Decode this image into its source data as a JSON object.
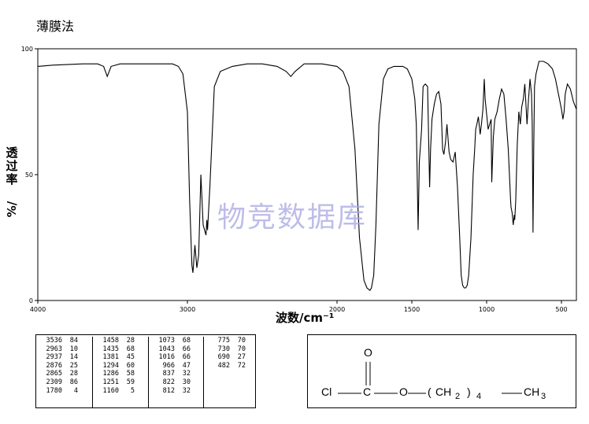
{
  "header": {
    "title": "薄膜法"
  },
  "watermark": "物竞数据库",
  "chart_data": {
    "type": "line",
    "title": "",
    "xlabel": "波数/cm⁻¹",
    "ylabel_chars": [
      "透",
      "过",
      "率"
    ],
    "ylabel_unit": "%/",
    "xlim": [
      4000,
      400
    ],
    "ylim": [
      0,
      100
    ],
    "x_ticks": [
      4000,
      3000,
      2000,
      1500,
      1000,
      500
    ],
    "y_ticks": [
      0,
      50,
      100
    ],
    "grid": false,
    "line_color": "#000000",
    "series": [
      {
        "x": [
          4000,
          3900,
          3700,
          3600,
          3560,
          3536,
          3510,
          3450,
          3300,
          3200,
          3100,
          3060,
          3030,
          3000,
          2985,
          2970,
          2963,
          2950,
          2937,
          2925,
          2910,
          2895,
          2876,
          2870,
          2865,
          2850,
          2820,
          2780,
          2700,
          2600,
          2500,
          2400,
          2340,
          2309,
          2280,
          2220,
          2150,
          2100,
          2050,
          2000,
          1960,
          1920,
          1880,
          1850,
          1820,
          1800,
          1790,
          1780,
          1770,
          1755,
          1740,
          1720,
          1690,
          1660,
          1620,
          1590,
          1560,
          1530,
          1500,
          1480,
          1470,
          1458,
          1450,
          1435,
          1425,
          1410,
          1395,
          1381,
          1375,
          1365,
          1350,
          1335,
          1320,
          1305,
          1294,
          1286,
          1275,
          1265,
          1251,
          1240,
          1225,
          1210,
          1195,
          1180,
          1170,
          1160,
          1150,
          1140,
          1130,
          1120,
          1105,
          1090,
          1080,
          1073,
          1065,
          1055,
          1043,
          1035,
          1025,
          1016,
          1010,
          1000,
          990,
          980,
          970,
          966,
          955,
          945,
          930,
          915,
          900,
          885,
          870,
          855,
          840,
          837,
          830,
          822,
          815,
          812,
          805,
          795,
          785,
          775,
          765,
          755,
          745,
          730,
          720,
          710,
          700,
          695,
          690,
          685,
          680,
          670,
          650,
          620,
          590,
          560,
          540,
          520,
          500,
          490,
          482,
          475,
          460,
          440,
          420,
          400
        ],
        "y": [
          93,
          93.5,
          94,
          94,
          93,
          89,
          93,
          94,
          94,
          94,
          94,
          93,
          90,
          75,
          40,
          14,
          11,
          22,
          13,
          18,
          50,
          30,
          26,
          32,
          28,
          45,
          85,
          91,
          93,
          94,
          94,
          93,
          91,
          89,
          91,
          94,
          94,
          94,
          93.5,
          93,
          91,
          85,
          60,
          25,
          8,
          5,
          4.5,
          4,
          5,
          10,
          30,
          70,
          88,
          92,
          93,
          93,
          93,
          92,
          88,
          80,
          70,
          28,
          55,
          68,
          85,
          86,
          85,
          45,
          60,
          72,
          78,
          82,
          83,
          78,
          60,
          58,
          63,
          70,
          59,
          56,
          55,
          59,
          45,
          25,
          10,
          6,
          5,
          5,
          6,
          10,
          25,
          50,
          60,
          68,
          70,
          73,
          66,
          70,
          76,
          88,
          80,
          74,
          68,
          70,
          72,
          47,
          65,
          72,
          75,
          80,
          84,
          82,
          72,
          60,
          40,
          37,
          35,
          30,
          34,
          32,
          40,
          62,
          75,
          70,
          77,
          80,
          86,
          70,
          80,
          88,
          82,
          70,
          27,
          60,
          85,
          90,
          95,
          95,
          94,
          92,
          88,
          82,
          76,
          72,
          75,
          82,
          86,
          84,
          79,
          76
        ]
      }
    ],
    "peaks": [
      [
        [
          3536,
          84
        ],
        [
          2963,
          10
        ],
        [
          2937,
          14
        ],
        [
          2876,
          25
        ],
        [
          2865,
          28
        ],
        [
          2309,
          86
        ],
        [
          1780,
          4
        ]
      ],
      [
        [
          1458,
          28
        ],
        [
          1435,
          68
        ],
        [
          1381,
          45
        ],
        [
          1294,
          60
        ],
        [
          1286,
          58
        ],
        [
          1251,
          59
        ],
        [
          1160,
          5
        ]
      ],
      [
        [
          1073,
          68
        ],
        [
          1043,
          66
        ],
        [
          1016,
          66
        ],
        [
          966,
          47
        ],
        [
          837,
          32
        ],
        [
          822,
          30
        ],
        [
          812,
          32
        ]
      ],
      [
        [
          775,
          70
        ],
        [
          730,
          70
        ],
        [
          690,
          27
        ],
        [
          482,
          72
        ]
      ]
    ]
  },
  "structure": {
    "top_atom": "O",
    "cl": "Cl",
    "c": "C",
    "o": "O",
    "open_paren": "(",
    "ch2": "CH",
    "sub2": "2",
    "close_paren": ")",
    "sub4": "4",
    "ch3": "CH",
    "sub3": "3"
  }
}
